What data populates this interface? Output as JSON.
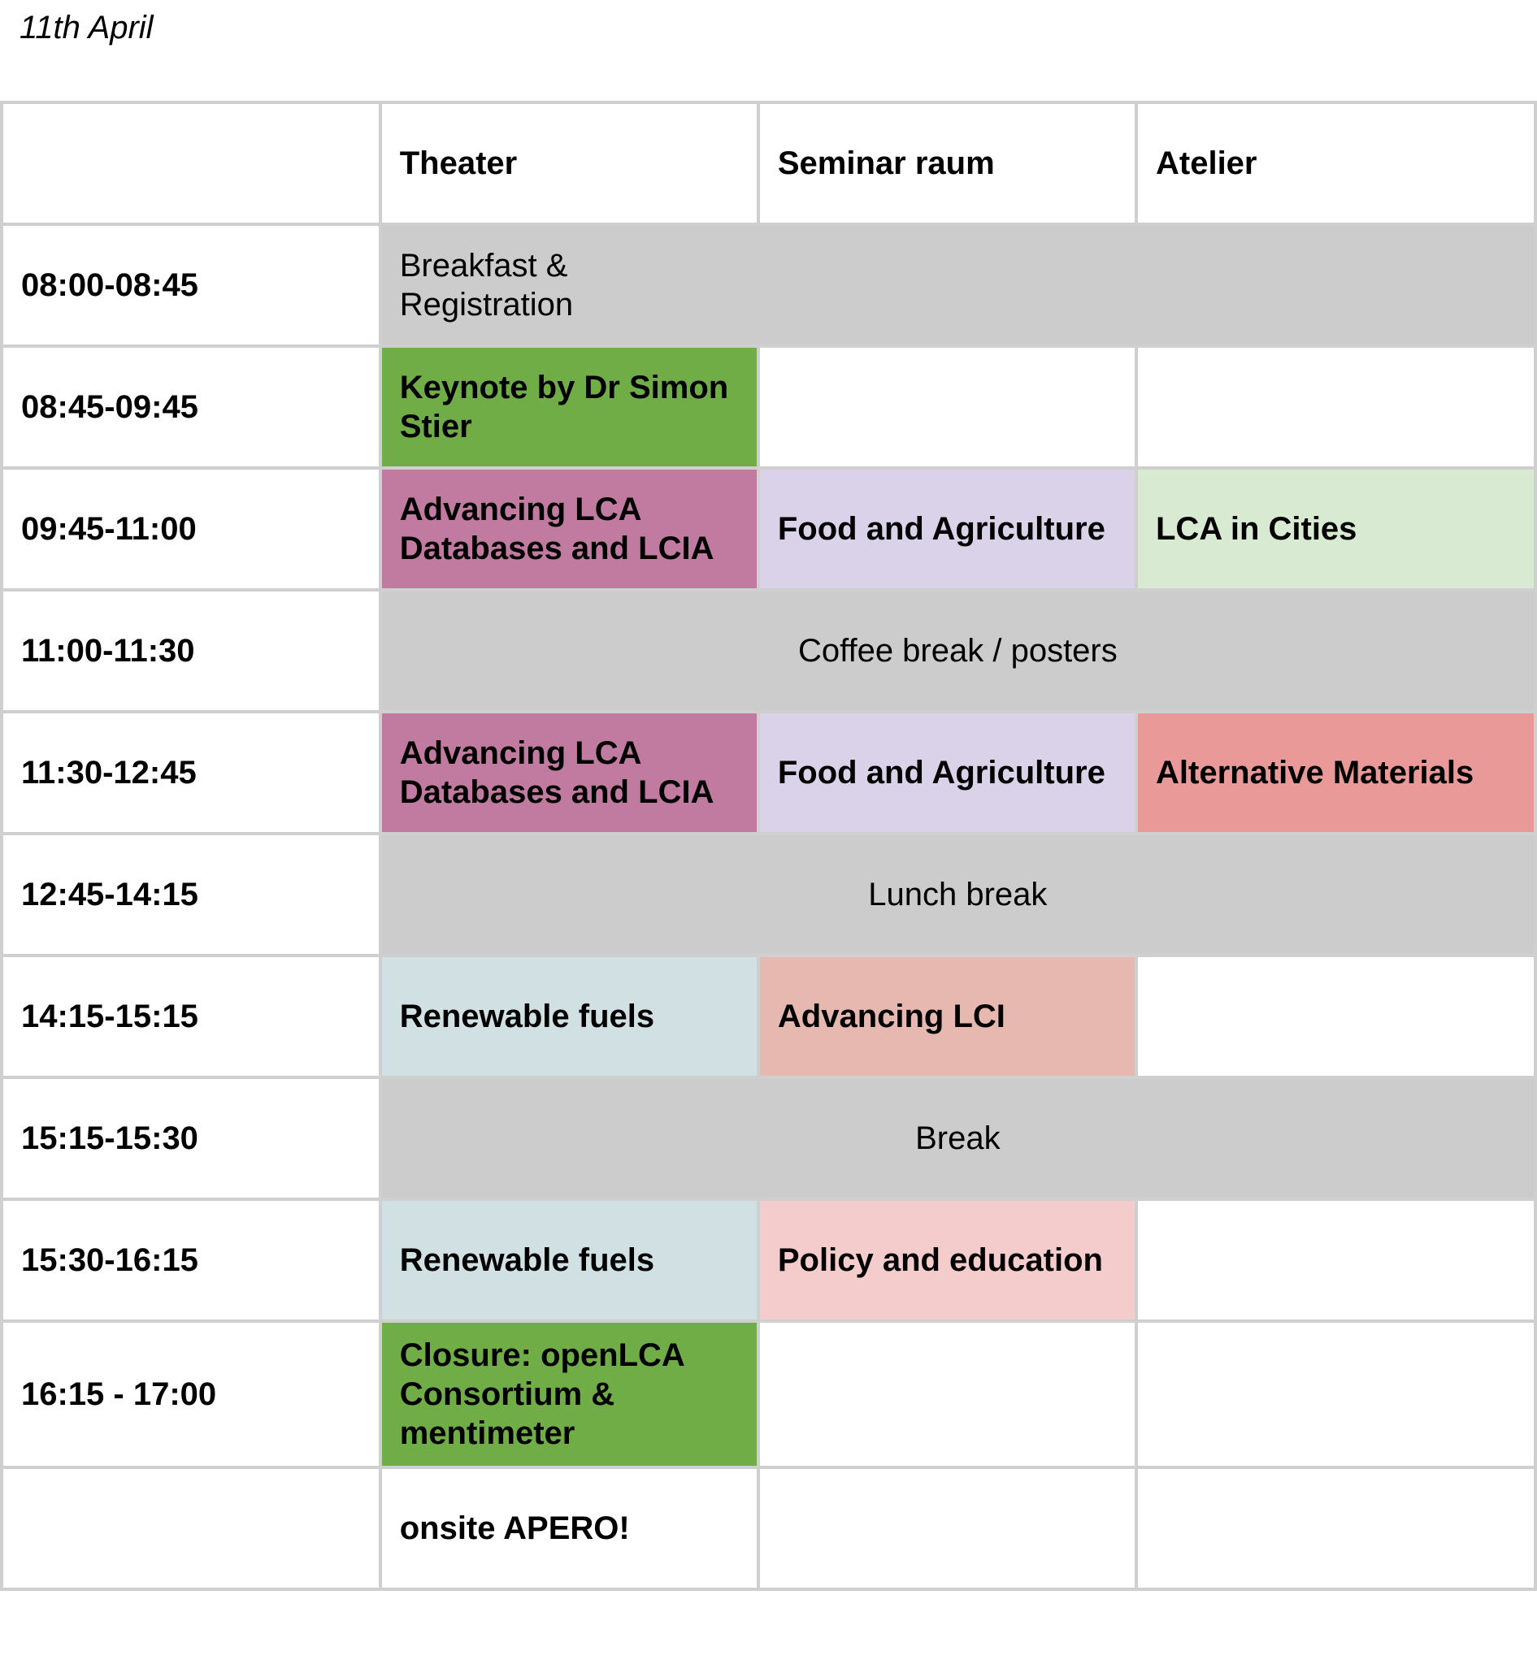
{
  "date": "11th April",
  "rooms": [
    "Theater",
    "Seminar raum",
    "Atelier"
  ],
  "colors": {
    "grey": "#cccccc",
    "green": "#70ad47",
    "magenta": "#c27ba0",
    "lavender": "#d9d2e9",
    "light_green": "#d9ead3",
    "salmon": "#ea9999",
    "light_blue": "#d0e0e3",
    "rose": "#e6b8af",
    "pink": "#f4cccc",
    "white": "#ffffff"
  },
  "rows": [
    {
      "time": "08:00-08:45",
      "span": {
        "text": "Breakfast &\nRegistration",
        "color": "grey",
        "align": "left",
        "bold": false
      }
    },
    {
      "time": "08:45-09:45",
      "cells": [
        {
          "text": "Keynote by Dr Simon Stier",
          "color": "green"
        },
        {
          "text": "",
          "color": "white"
        },
        {
          "text": "",
          "color": "white"
        }
      ]
    },
    {
      "time": "09:45-11:00",
      "cells": [
        {
          "text": "Advancing LCA Databases and LCIA",
          "color": "magenta"
        },
        {
          "text": "Food and Agriculture",
          "color": "lavender"
        },
        {
          "text": "LCA in Cities",
          "color": "light_green"
        }
      ]
    },
    {
      "time": "11:00-11:30",
      "span": {
        "text": "Coffee break / posters",
        "color": "grey",
        "align": "center",
        "bold": false
      }
    },
    {
      "time": "11:30-12:45",
      "cells": [
        {
          "text": "Advancing LCA Databases and LCIA",
          "color": "magenta"
        },
        {
          "text": "Food and Agriculture",
          "color": "lavender"
        },
        {
          "text": "Alternative Materials",
          "color": "salmon"
        }
      ]
    },
    {
      "time": "12:45-14:15",
      "span": {
        "text": "Lunch break",
        "color": "grey",
        "align": "center",
        "bold": false
      }
    },
    {
      "time": "14:15-15:15",
      "cells": [
        {
          "text": "Renewable fuels",
          "color": "light_blue"
        },
        {
          "text": "Advancing LCI",
          "color": "rose"
        },
        {
          "text": "",
          "color": "white"
        }
      ]
    },
    {
      "time": "15:15-15:30",
      "span": {
        "text": "Break",
        "color": "grey",
        "align": "center",
        "bold": false
      }
    },
    {
      "time": "15:30-16:15",
      "cells": [
        {
          "text": "Renewable fuels",
          "color": "light_blue"
        },
        {
          "text": "Policy and education",
          "color": "pink"
        },
        {
          "text": "",
          "color": "white"
        }
      ]
    },
    {
      "time": "16:15 - 17:00",
      "cells": [
        {
          "text": "Closure: openLCA Consortium & mentimeter",
          "color": "green"
        },
        {
          "text": "",
          "color": "white"
        },
        {
          "text": "",
          "color": "white"
        }
      ]
    },
    {
      "time": "",
      "cells": [
        {
          "text": "onsite APERO!",
          "color": "white"
        },
        {
          "text": "",
          "color": "white"
        },
        {
          "text": "",
          "color": "white"
        }
      ]
    }
  ]
}
